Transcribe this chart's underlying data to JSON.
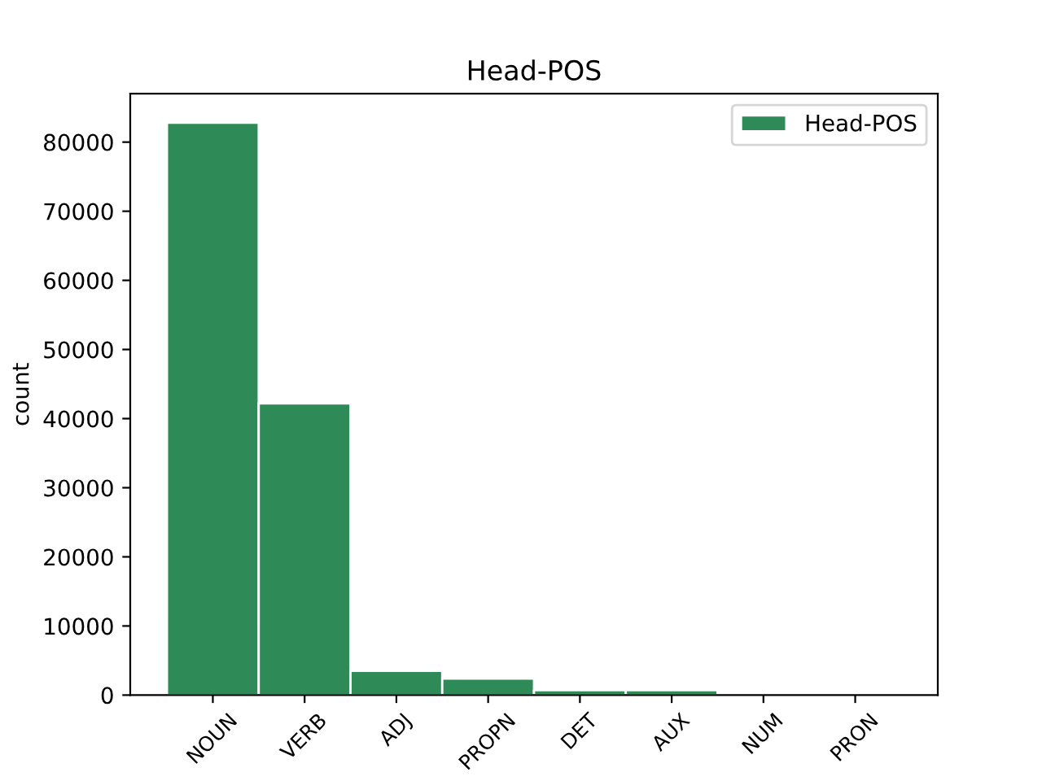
{
  "chart_data": {
    "type": "bar",
    "title": "Head-POS",
    "ylabel": "count",
    "categories": [
      "NOUN",
      "VERB",
      "ADJ",
      "PROPN",
      "DET",
      "AUX",
      "NUM",
      "PRON"
    ],
    "series": [
      {
        "name": "Head-POS",
        "color": "#2e8b57",
        "values": [
          82800,
          42200,
          3500,
          2400,
          700,
          700,
          null,
          null
        ]
      }
    ],
    "ylim": [
      0,
      87000
    ],
    "yticks": [
      0,
      10000,
      20000,
      30000,
      40000,
      50000,
      60000,
      70000,
      80000
    ],
    "grid": false,
    "legend": "top right"
  }
}
